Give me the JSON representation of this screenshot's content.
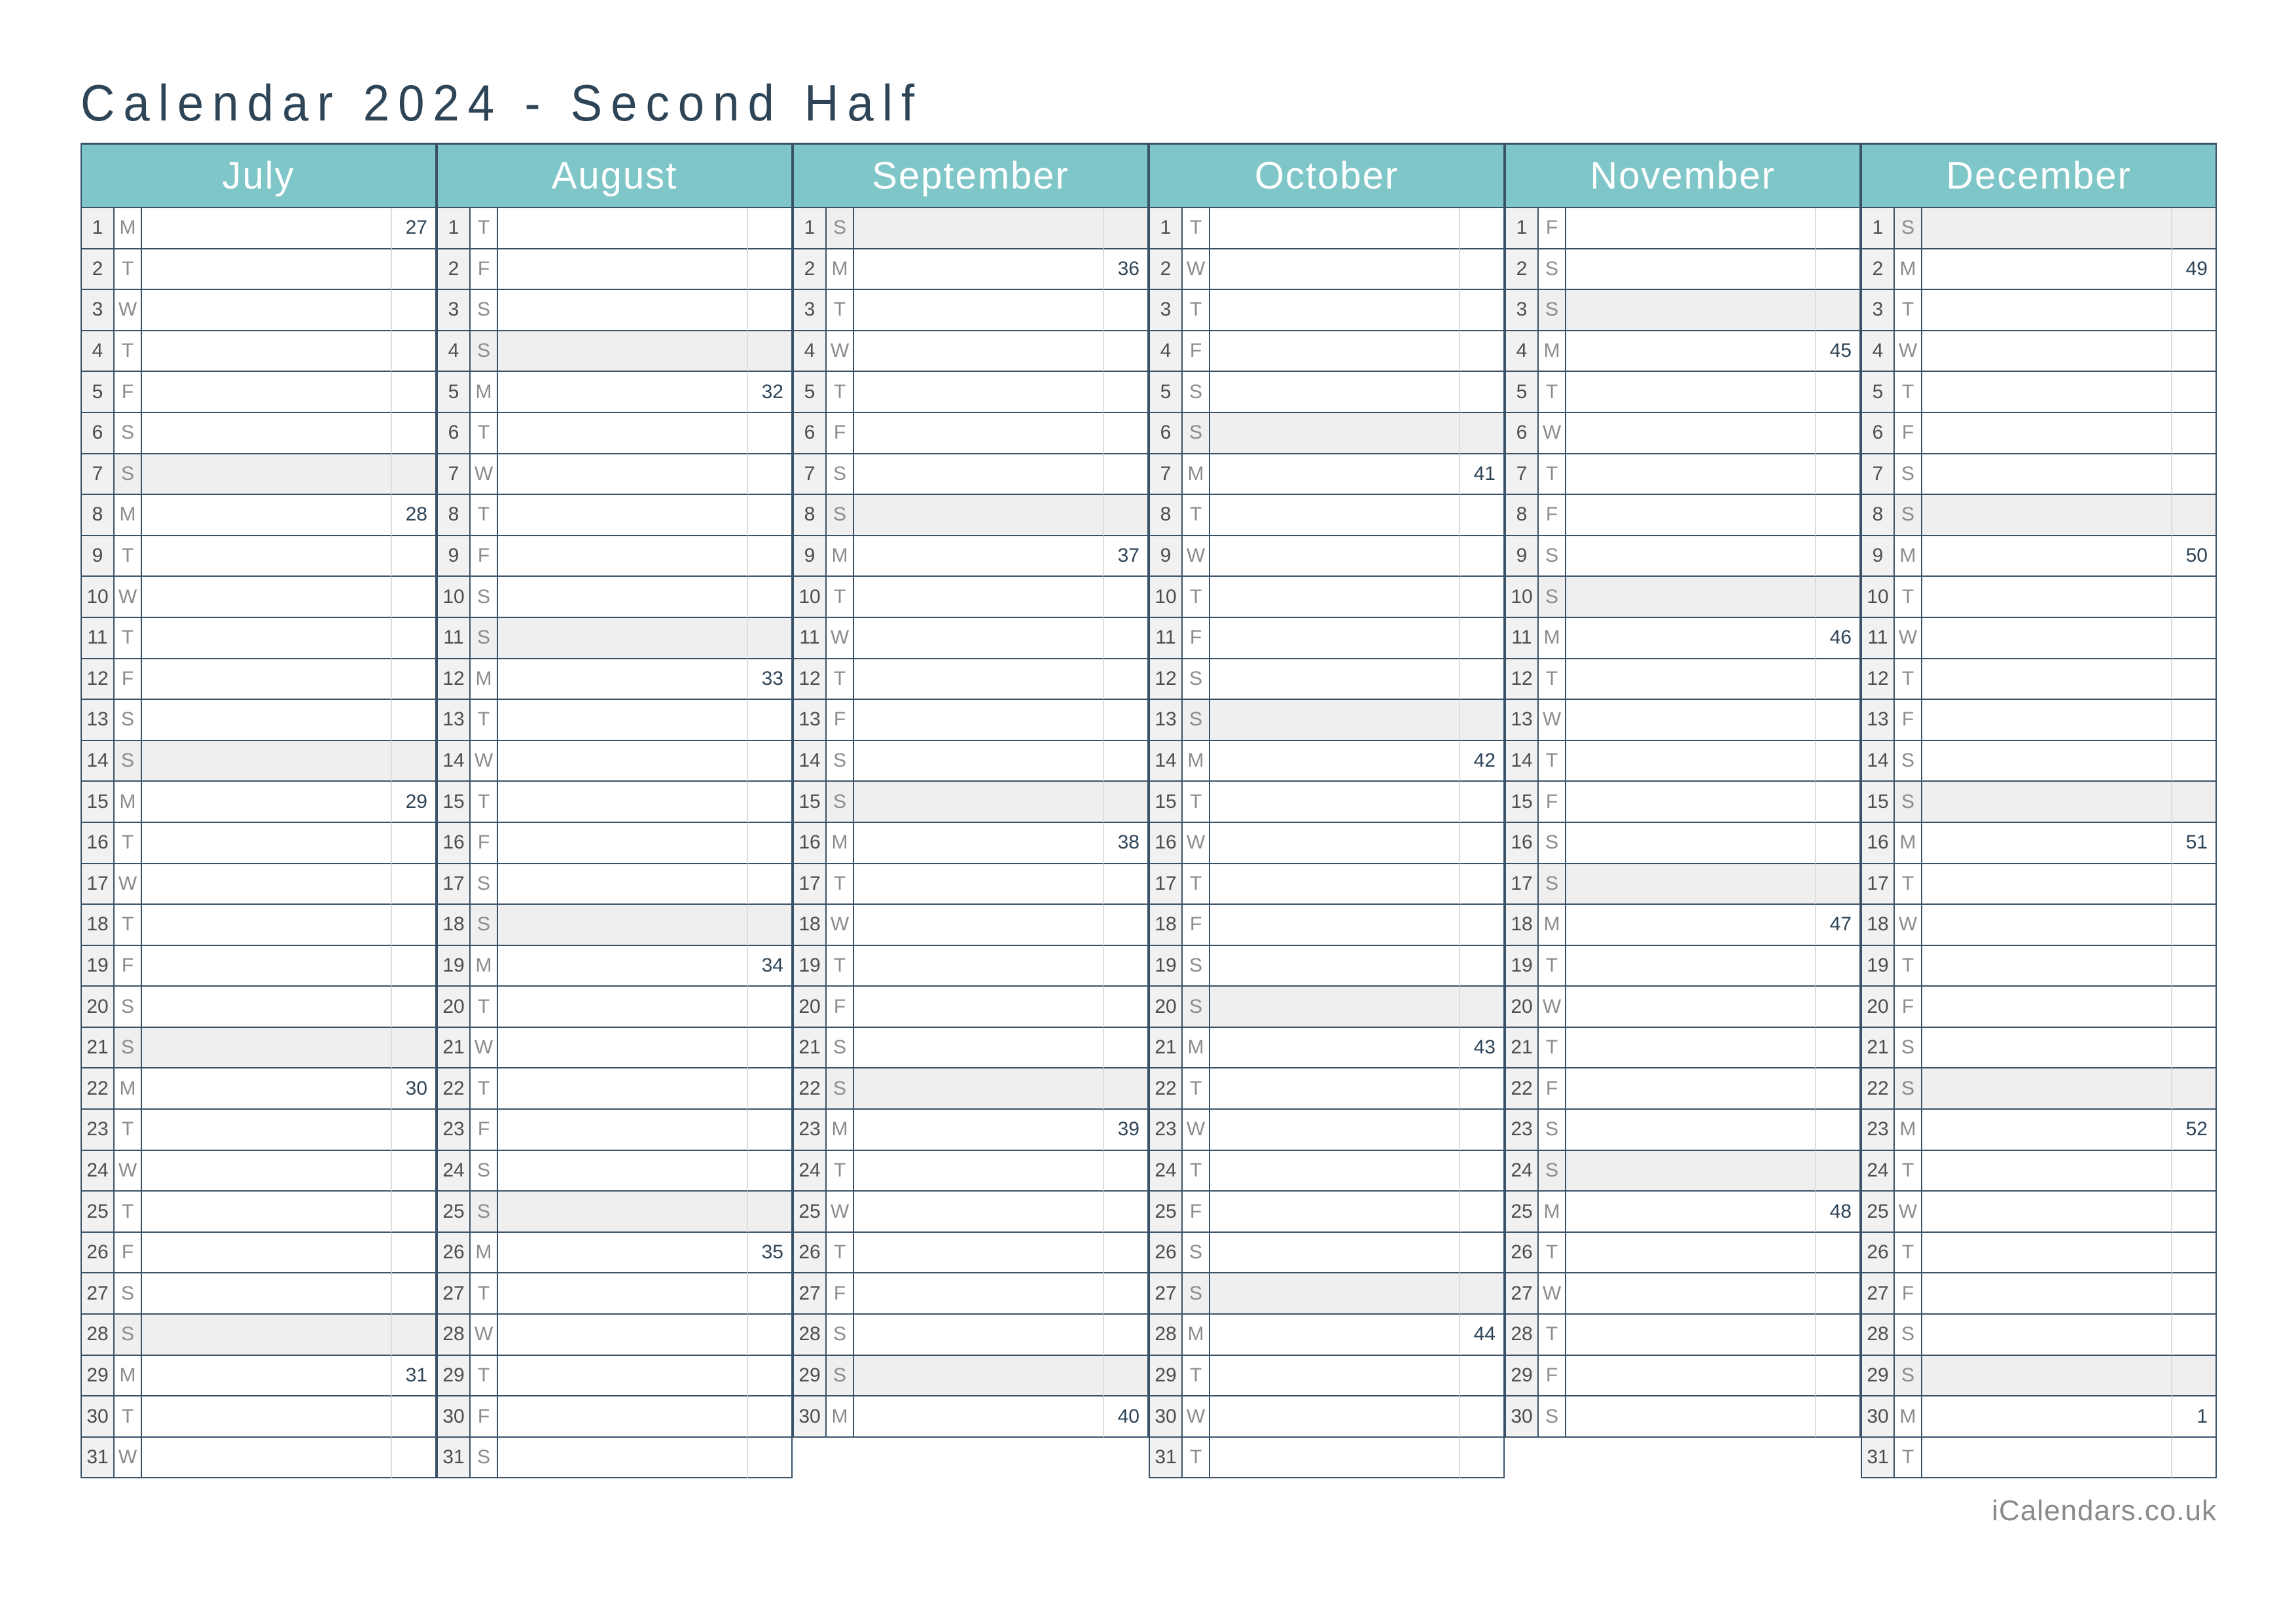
{
  "title": "Calendar 2024 - Second Half",
  "footer": "iCalendars.co.uk",
  "colors": {
    "header_bg": "#7ec6c8",
    "header_text": "#ffffff",
    "title_text": "#2e4457",
    "week_number_text": "#2e4457",
    "day_number_text": "#4d4d4d",
    "day_letter_text": "#8c8c8c",
    "grid_border": "#3a5268",
    "faint_divider": "#dcdcdc",
    "day_number_col_bg": "#f1f1f1",
    "sunday_shade": "#efefef"
  },
  "months": [
    {
      "name": "July",
      "days": [
        [
          1,
          "M",
          27,
          0
        ],
        [
          2,
          "T",
          0,
          0
        ],
        [
          3,
          "W",
          0,
          0
        ],
        [
          4,
          "T",
          0,
          0
        ],
        [
          5,
          "F",
          0,
          0
        ],
        [
          6,
          "S",
          0,
          0
        ],
        [
          7,
          "S",
          0,
          1
        ],
        [
          8,
          "M",
          28,
          0
        ],
        [
          9,
          "T",
          0,
          0
        ],
        [
          10,
          "W",
          0,
          0
        ],
        [
          11,
          "T",
          0,
          0
        ],
        [
          12,
          "F",
          0,
          0
        ],
        [
          13,
          "S",
          0,
          0
        ],
        [
          14,
          "S",
          0,
          1
        ],
        [
          15,
          "M",
          29,
          0
        ],
        [
          16,
          "T",
          0,
          0
        ],
        [
          17,
          "W",
          0,
          0
        ],
        [
          18,
          "T",
          0,
          0
        ],
        [
          19,
          "F",
          0,
          0
        ],
        [
          20,
          "S",
          0,
          0
        ],
        [
          21,
          "S",
          0,
          1
        ],
        [
          22,
          "M",
          30,
          0
        ],
        [
          23,
          "T",
          0,
          0
        ],
        [
          24,
          "W",
          0,
          0
        ],
        [
          25,
          "T",
          0,
          0
        ],
        [
          26,
          "F",
          0,
          0
        ],
        [
          27,
          "S",
          0,
          0
        ],
        [
          28,
          "S",
          0,
          1
        ],
        [
          29,
          "M",
          31,
          0
        ],
        [
          30,
          "T",
          0,
          0
        ],
        [
          31,
          "W",
          0,
          0
        ]
      ]
    },
    {
      "name": "August",
      "days": [
        [
          1,
          "T",
          0,
          0
        ],
        [
          2,
          "F",
          0,
          0
        ],
        [
          3,
          "S",
          0,
          0
        ],
        [
          4,
          "S",
          0,
          1
        ],
        [
          5,
          "M",
          32,
          0
        ],
        [
          6,
          "T",
          0,
          0
        ],
        [
          7,
          "W",
          0,
          0
        ],
        [
          8,
          "T",
          0,
          0
        ],
        [
          9,
          "F",
          0,
          0
        ],
        [
          10,
          "S",
          0,
          0
        ],
        [
          11,
          "S",
          0,
          1
        ],
        [
          12,
          "M",
          33,
          0
        ],
        [
          13,
          "T",
          0,
          0
        ],
        [
          14,
          "W",
          0,
          0
        ],
        [
          15,
          "T",
          0,
          0
        ],
        [
          16,
          "F",
          0,
          0
        ],
        [
          17,
          "S",
          0,
          0
        ],
        [
          18,
          "S",
          0,
          1
        ],
        [
          19,
          "M",
          34,
          0
        ],
        [
          20,
          "T",
          0,
          0
        ],
        [
          21,
          "W",
          0,
          0
        ],
        [
          22,
          "T",
          0,
          0
        ],
        [
          23,
          "F",
          0,
          0
        ],
        [
          24,
          "S",
          0,
          0
        ],
        [
          25,
          "S",
          0,
          1
        ],
        [
          26,
          "M",
          35,
          0
        ],
        [
          27,
          "T",
          0,
          0
        ],
        [
          28,
          "W",
          0,
          0
        ],
        [
          29,
          "T",
          0,
          0
        ],
        [
          30,
          "F",
          0,
          0
        ],
        [
          31,
          "S",
          0,
          0
        ]
      ]
    },
    {
      "name": "September",
      "days": [
        [
          1,
          "S",
          0,
          1
        ],
        [
          2,
          "M",
          36,
          0
        ],
        [
          3,
          "T",
          0,
          0
        ],
        [
          4,
          "W",
          0,
          0
        ],
        [
          5,
          "T",
          0,
          0
        ],
        [
          6,
          "F",
          0,
          0
        ],
        [
          7,
          "S",
          0,
          0
        ],
        [
          8,
          "S",
          0,
          1
        ],
        [
          9,
          "M",
          37,
          0
        ],
        [
          10,
          "T",
          0,
          0
        ],
        [
          11,
          "W",
          0,
          0
        ],
        [
          12,
          "T",
          0,
          0
        ],
        [
          13,
          "F",
          0,
          0
        ],
        [
          14,
          "S",
          0,
          0
        ],
        [
          15,
          "S",
          0,
          1
        ],
        [
          16,
          "M",
          38,
          0
        ],
        [
          17,
          "T",
          0,
          0
        ],
        [
          18,
          "W",
          0,
          0
        ],
        [
          19,
          "T",
          0,
          0
        ],
        [
          20,
          "F",
          0,
          0
        ],
        [
          21,
          "S",
          0,
          0
        ],
        [
          22,
          "S",
          0,
          1
        ],
        [
          23,
          "M",
          39,
          0
        ],
        [
          24,
          "T",
          0,
          0
        ],
        [
          25,
          "W",
          0,
          0
        ],
        [
          26,
          "T",
          0,
          0
        ],
        [
          27,
          "F",
          0,
          0
        ],
        [
          28,
          "S",
          0,
          0
        ],
        [
          29,
          "S",
          0,
          1
        ],
        [
          30,
          "M",
          40,
          0
        ]
      ]
    },
    {
      "name": "October",
      "days": [
        [
          1,
          "T",
          0,
          0
        ],
        [
          2,
          "W",
          0,
          0
        ],
        [
          3,
          "T",
          0,
          0
        ],
        [
          4,
          "F",
          0,
          0
        ],
        [
          5,
          "S",
          0,
          0
        ],
        [
          6,
          "S",
          0,
          1
        ],
        [
          7,
          "M",
          41,
          0
        ],
        [
          8,
          "T",
          0,
          0
        ],
        [
          9,
          "W",
          0,
          0
        ],
        [
          10,
          "T",
          0,
          0
        ],
        [
          11,
          "F",
          0,
          0
        ],
        [
          12,
          "S",
          0,
          0
        ],
        [
          13,
          "S",
          0,
          1
        ],
        [
          14,
          "M",
          42,
          0
        ],
        [
          15,
          "T",
          0,
          0
        ],
        [
          16,
          "W",
          0,
          0
        ],
        [
          17,
          "T",
          0,
          0
        ],
        [
          18,
          "F",
          0,
          0
        ],
        [
          19,
          "S",
          0,
          0
        ],
        [
          20,
          "S",
          0,
          1
        ],
        [
          21,
          "M",
          43,
          0
        ],
        [
          22,
          "T",
          0,
          0
        ],
        [
          23,
          "W",
          0,
          0
        ],
        [
          24,
          "T",
          0,
          0
        ],
        [
          25,
          "F",
          0,
          0
        ],
        [
          26,
          "S",
          0,
          0
        ],
        [
          27,
          "S",
          0,
          1
        ],
        [
          28,
          "M",
          44,
          0
        ],
        [
          29,
          "T",
          0,
          0
        ],
        [
          30,
          "W",
          0,
          0
        ],
        [
          31,
          "T",
          0,
          0
        ]
      ]
    },
    {
      "name": "November",
      "days": [
        [
          1,
          "F",
          0,
          0
        ],
        [
          2,
          "S",
          0,
          0
        ],
        [
          3,
          "S",
          0,
          1
        ],
        [
          4,
          "M",
          45,
          0
        ],
        [
          5,
          "T",
          0,
          0
        ],
        [
          6,
          "W",
          0,
          0
        ],
        [
          7,
          "T",
          0,
          0
        ],
        [
          8,
          "F",
          0,
          0
        ],
        [
          9,
          "S",
          0,
          0
        ],
        [
          10,
          "S",
          0,
          1
        ],
        [
          11,
          "M",
          46,
          0
        ],
        [
          12,
          "T",
          0,
          0
        ],
        [
          13,
          "W",
          0,
          0
        ],
        [
          14,
          "T",
          0,
          0
        ],
        [
          15,
          "F",
          0,
          0
        ],
        [
          16,
          "S",
          0,
          0
        ],
        [
          17,
          "S",
          0,
          1
        ],
        [
          18,
          "M",
          47,
          0
        ],
        [
          19,
          "T",
          0,
          0
        ],
        [
          20,
          "W",
          0,
          0
        ],
        [
          21,
          "T",
          0,
          0
        ],
        [
          22,
          "F",
          0,
          0
        ],
        [
          23,
          "S",
          0,
          0
        ],
        [
          24,
          "S",
          0,
          1
        ],
        [
          25,
          "M",
          48,
          0
        ],
        [
          26,
          "T",
          0,
          0
        ],
        [
          27,
          "W",
          0,
          0
        ],
        [
          28,
          "T",
          0,
          0
        ],
        [
          29,
          "F",
          0,
          0
        ],
        [
          30,
          "S",
          0,
          0
        ]
      ]
    },
    {
      "name": "December",
      "days": [
        [
          1,
          "S",
          0,
          1
        ],
        [
          2,
          "M",
          49,
          0
        ],
        [
          3,
          "T",
          0,
          0
        ],
        [
          4,
          "W",
          0,
          0
        ],
        [
          5,
          "T",
          0,
          0
        ],
        [
          6,
          "F",
          0,
          0
        ],
        [
          7,
          "S",
          0,
          0
        ],
        [
          8,
          "S",
          0,
          1
        ],
        [
          9,
          "M",
          50,
          0
        ],
        [
          10,
          "T",
          0,
          0
        ],
        [
          11,
          "W",
          0,
          0
        ],
        [
          12,
          "T",
          0,
          0
        ],
        [
          13,
          "F",
          0,
          0
        ],
        [
          14,
          "S",
          0,
          0
        ],
        [
          15,
          "S",
          0,
          1
        ],
        [
          16,
          "M",
          51,
          0
        ],
        [
          17,
          "T",
          0,
          0
        ],
        [
          18,
          "W",
          0,
          0
        ],
        [
          19,
          "T",
          0,
          0
        ],
        [
          20,
          "F",
          0,
          0
        ],
        [
          21,
          "S",
          0,
          0
        ],
        [
          22,
          "S",
          0,
          1
        ],
        [
          23,
          "M",
          52,
          0
        ],
        [
          24,
          "T",
          0,
          0
        ],
        [
          25,
          "W",
          0,
          0
        ],
        [
          26,
          "T",
          0,
          0
        ],
        [
          27,
          "F",
          0,
          0
        ],
        [
          28,
          "S",
          0,
          0
        ],
        [
          29,
          "S",
          0,
          1
        ],
        [
          30,
          "M",
          1,
          0
        ],
        [
          31,
          "T",
          0,
          0
        ]
      ]
    }
  ]
}
